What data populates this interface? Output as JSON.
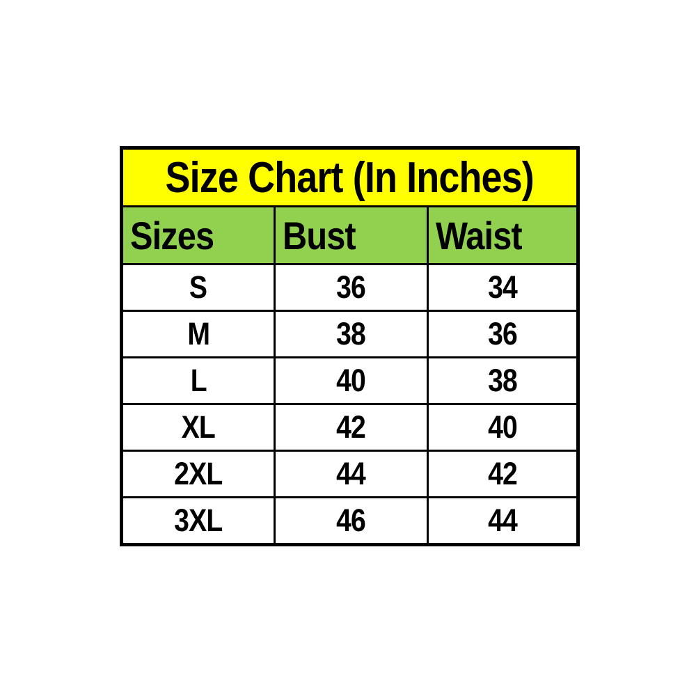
{
  "title": "Size Chart (In Inches)",
  "columns": [
    {
      "label": "Sizes"
    },
    {
      "label": "Bust"
    },
    {
      "label": "Waist"
    }
  ],
  "rows": [
    {
      "size": "S",
      "bust": "36",
      "waist": "34"
    },
    {
      "size": "M",
      "bust": "38",
      "waist": "36"
    },
    {
      "size": "L",
      "bust": "40",
      "waist": "38"
    },
    {
      "size": "XL",
      "bust": "42",
      "waist": "40"
    },
    {
      "size": "2XL",
      "bust": "44",
      "waist": "42"
    },
    {
      "size": "3XL",
      "bust": "46",
      "waist": "44"
    }
  ],
  "colors": {
    "title_background": "#FFFF00",
    "header_background": "#92D050",
    "row_background": "#FFFFFF",
    "border": "#000000",
    "text": "#000000",
    "page_background": "#FFFFFF"
  }
}
